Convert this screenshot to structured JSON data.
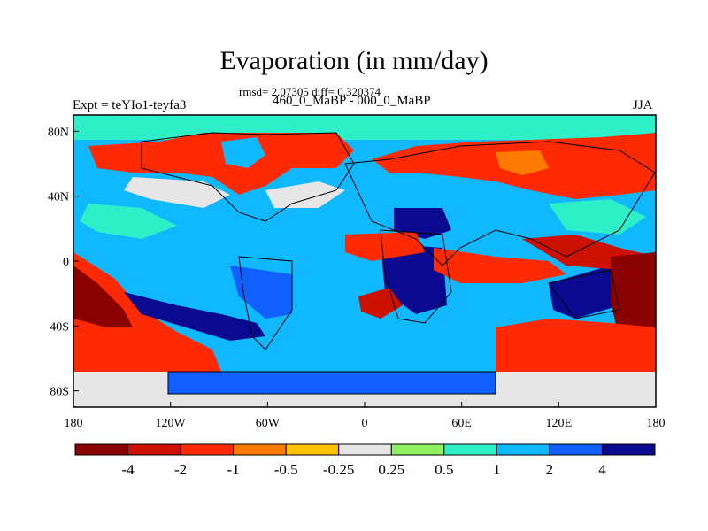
{
  "title": "Evaporation (in mm/day)",
  "stats_line": "rmsd= 2.07305 diff= 0.320374",
  "subtitle": "460_0_MaBP - 000_0_MaBP",
  "left_label": "Expt = teYIo1-teyfa3",
  "right_label": "JJA",
  "map": {
    "lat_ticks": [
      "80N",
      "40N",
      "0",
      "40S",
      "80S"
    ],
    "lon_ticks": [
      "180",
      "120W",
      "60W",
      "0",
      "60E",
      "120E",
      "180"
    ],
    "lat_tick_values": [
      80,
      40,
      0,
      -40,
      -80
    ],
    "lon_tick_values": [
      -180,
      -120,
      -60,
      0,
      60,
      120,
      180
    ]
  },
  "colorbar": {
    "colors": [
      "#8b0000",
      "#cc1100",
      "#ff2a00",
      "#ff7a00",
      "#ffc000",
      "#e6e6e6",
      "#90f060",
      "#2ef0c8",
      "#10b8ff",
      "#1060ff",
      "#0a0a90"
    ],
    "labels": [
      "-4",
      "-2",
      "-1",
      "-0.5",
      "-0.25",
      "0.25",
      "0.5",
      "1",
      "2",
      "4"
    ]
  },
  "colors": {
    "ocean_base": "#10a4ff",
    "land_warm": "#ff2a00",
    "polar": "#e6e6e6",
    "arctic": "#2ef0c8"
  }
}
